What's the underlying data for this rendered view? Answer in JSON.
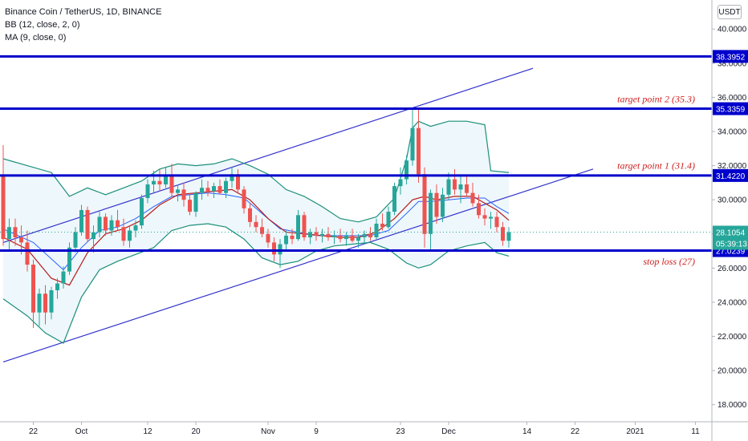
{
  "legend": {
    "symbol": "Binance Coin / TetherUS, 1D, BINANCE",
    "bb": "BB (12, close, 2, 0)",
    "ma": "MA (9, close, 0)"
  },
  "currency": "USDT",
  "colors": {
    "up": "#26a69a",
    "down": "#ef5350",
    "level": "#0000cc",
    "channel": "#3333cc",
    "bb": "#1b8f7a",
    "ma_red": "#b71c1c",
    "ma_blue": "#2962ff",
    "annotation": "#d02020"
  },
  "chart_data": {
    "type": "candlestick",
    "yaxis_ticks": [
      "18.0000",
      "20.0000",
      "22.0000",
      "24.0000",
      "26.0000",
      "28.0000",
      "30.0000",
      "32.0000",
      "34.0000",
      "36.0000",
      "38.0000",
      "40.0000"
    ],
    "ylim": [
      17,
      41.7
    ],
    "xaxis_ticks": [
      {
        "label": "22",
        "day": 5
      },
      {
        "label": "Oct",
        "day": 13
      },
      {
        "label": "12",
        "day": 24
      },
      {
        "label": "20",
        "day": 32
      },
      {
        "label": "Nov",
        "day": 44
      },
      {
        "label": "9",
        "day": 52
      },
      {
        "label": "23",
        "day": 66
      },
      {
        "label": "Dec",
        "day": 74
      },
      {
        "label": "14",
        "day": 87
      },
      {
        "label": "22",
        "day": 95
      },
      {
        "label": "2021",
        "day": 105
      },
      {
        "label": "11",
        "day": 115
      }
    ],
    "levels": [
      {
        "value": 38.3952,
        "label": "38.3952"
      },
      {
        "value": 35.3359,
        "label": "35.3359"
      },
      {
        "value": 31.422,
        "label": "31.4220"
      },
      {
        "value": 27.0239,
        "label": "27.0239"
      }
    ],
    "current_price": {
      "value": 28.1054,
      "label": "28.1054",
      "countdown": "05:39:13"
    },
    "annotations": [
      {
        "text": "target point 2 (35.3)",
        "value": 35.3
      },
      {
        "text": "target point 1 (31.4)",
        "value": 31.4
      },
      {
        "text": "stop loss (27)",
        "value": 27
      }
    ],
    "channel": {
      "upper": {
        "from": [
          0,
          27.5
        ],
        "to": [
          88,
          37.7
        ]
      },
      "lower": {
        "from": [
          0,
          20.5
        ],
        "to": [
          98,
          31.8
        ]
      }
    },
    "candles": [
      [
        0,
        31.4,
        33.2,
        27.3,
        27.7
      ],
      [
        1,
        27.7,
        28.9,
        27.1,
        28.4
      ],
      [
        2,
        28.4,
        28.9,
        27.3,
        27.8
      ],
      [
        3,
        27.8,
        28.5,
        26.8,
        27.5
      ],
      [
        4,
        27.5,
        28.2,
        25.8,
        26.2
      ],
      [
        5,
        26.2,
        26.5,
        22.5,
        23.4
      ],
      [
        6,
        23.4,
        24.8,
        22.6,
        24.5
      ],
      [
        7,
        24.5,
        25.0,
        22.7,
        23.4
      ],
      [
        8,
        23.4,
        24.9,
        23.0,
        24.7
      ],
      [
        9,
        24.7,
        25.4,
        24.2,
        25.1
      ],
      [
        10,
        25.1,
        26.1,
        24.8,
        25.8
      ],
      [
        11,
        25.8,
        27.5,
        25.6,
        27.2
      ],
      [
        12,
        27.2,
        28.4,
        26.9,
        28.1
      ],
      [
        13,
        28.1,
        29.7,
        27.9,
        29.4
      ],
      [
        14,
        29.4,
        29.6,
        27.5,
        27.7
      ],
      [
        15,
        27.7,
        28.5,
        26.9,
        28.1
      ],
      [
        16,
        28.1,
        29.3,
        27.8,
        29.0
      ],
      [
        17,
        29.0,
        29.2,
        27.9,
        28.2
      ],
      [
        18,
        28.2,
        29.1,
        27.9,
        28.8
      ],
      [
        19,
        28.8,
        29.4,
        28.2,
        28.4
      ],
      [
        20,
        28.4,
        28.9,
        27.3,
        27.6
      ],
      [
        21,
        27.6,
        28.5,
        27.2,
        28.2
      ],
      [
        22,
        28.2,
        28.8,
        27.8,
        28.5
      ],
      [
        23,
        28.5,
        30.3,
        28.3,
        30.1
      ],
      [
        24,
        30.1,
        31.2,
        29.8,
        30.9
      ],
      [
        25,
        30.9,
        31.7,
        30.4,
        31.1
      ],
      [
        26,
        31.1,
        31.8,
        30.5,
        30.9
      ],
      [
        27,
        30.9,
        31.9,
        30.7,
        31.4
      ],
      [
        28,
        31.4,
        32.1,
        30.2,
        30.4
      ],
      [
        29,
        30.4,
        30.9,
        29.9,
        30.6
      ],
      [
        30,
        30.6,
        31.0,
        29.6,
        30.0
      ],
      [
        31,
        30.0,
        30.4,
        29.1,
        29.3
      ],
      [
        32,
        29.3,
        30.5,
        29.0,
        30.4
      ],
      [
        33,
        30.4,
        31.2,
        30.0,
        30.7
      ],
      [
        34,
        30.7,
        31.1,
        30.2,
        30.5
      ],
      [
        35,
        30.5,
        31.0,
        30.1,
        30.8
      ],
      [
        36,
        30.8,
        31.2,
        30.3,
        30.4
      ],
      [
        37,
        30.4,
        31.3,
        30.1,
        31.1
      ],
      [
        38,
        31.1,
        31.9,
        30.7,
        31.5
      ],
      [
        39,
        31.5,
        31.8,
        30.4,
        30.6
      ],
      [
        40,
        30.6,
        30.8,
        29.2,
        29.5
      ],
      [
        41,
        29.5,
        29.8,
        28.4,
        28.7
      ],
      [
        42,
        28.7,
        29.1,
        28.1,
        28.4
      ],
      [
        43,
        28.4,
        28.9,
        27.8,
        28.0
      ],
      [
        44,
        28.0,
        28.3,
        27.2,
        27.5
      ],
      [
        45,
        27.5,
        27.8,
        26.4,
        26.8
      ],
      [
        46,
        26.8,
        27.7,
        26.0,
        27.4
      ],
      [
        47,
        27.4,
        28.2,
        27.0,
        27.9
      ],
      [
        48,
        27.9,
        28.3,
        27.4,
        27.7
      ],
      [
        49,
        27.7,
        29.4,
        27.6,
        29.1
      ],
      [
        50,
        29.1,
        29.3,
        27.6,
        27.8
      ],
      [
        51,
        27.8,
        28.3,
        27.4,
        28.1
      ],
      [
        52,
        28.1,
        28.4,
        27.6,
        27.9
      ],
      [
        53,
        27.9,
        28.3,
        27.5,
        28.0
      ],
      [
        54,
        28.0,
        28.4,
        27.6,
        27.8
      ],
      [
        55,
        27.8,
        28.2,
        27.4,
        27.9
      ],
      [
        56,
        27.9,
        28.3,
        27.5,
        27.7
      ],
      [
        57,
        27.7,
        28.1,
        27.3,
        27.9
      ],
      [
        58,
        27.9,
        28.3,
        27.5,
        27.6
      ],
      [
        59,
        27.6,
        28.0,
        27.2,
        27.8
      ],
      [
        60,
        27.8,
        28.2,
        27.4,
        28.0
      ],
      [
        61,
        28.0,
        28.4,
        27.6,
        27.8
      ],
      [
        62,
        27.8,
        28.9,
        27.7,
        28.6
      ],
      [
        63,
        28.6,
        29.2,
        28.2,
        28.4
      ],
      [
        64,
        28.4,
        29.6,
        28.3,
        29.3
      ],
      [
        65,
        29.3,
        31.0,
        29.1,
        30.8
      ],
      [
        66,
        30.8,
        31.9,
        30.3,
        31.2
      ],
      [
        67,
        31.2,
        32.6,
        30.9,
        32.3
      ],
      [
        68,
        32.3,
        35.3,
        32.0,
        34.2
      ],
      [
        69,
        34.2,
        35.4,
        31.0,
        31.5
      ],
      [
        70,
        31.5,
        31.9,
        27.2,
        28.0
      ],
      [
        71,
        28.0,
        30.6,
        27.1,
        30.4
      ],
      [
        72,
        30.4,
        30.9,
        28.6,
        29.0
      ],
      [
        73,
        29.0,
        30.7,
        28.7,
        30.3
      ],
      [
        74,
        30.3,
        31.6,
        30.0,
        31.2
      ],
      [
        75,
        31.2,
        31.8,
        30.3,
        30.6
      ],
      [
        76,
        30.6,
        31.4,
        29.8,
        30.9
      ],
      [
        77,
        30.9,
        31.5,
        30.2,
        30.4
      ],
      [
        78,
        30.4,
        31.0,
        29.6,
        29.8
      ],
      [
        79,
        29.8,
        30.3,
        28.9,
        29.1
      ],
      [
        80,
        29.1,
        29.5,
        28.5,
        28.9
      ],
      [
        81,
        28.9,
        29.3,
        28.3,
        29.0
      ],
      [
        82,
        29.0,
        29.3,
        28.1,
        28.4
      ],
      [
        83,
        28.4,
        28.7,
        27.3,
        27.6
      ],
      [
        84,
        27.6,
        28.4,
        27.2,
        28.1
      ]
    ],
    "bb_upper": [
      [
        0,
        32.4
      ],
      [
        4,
        32.0
      ],
      [
        8,
        31.6
      ],
      [
        11,
        30.2
      ],
      [
        14,
        30.7
      ],
      [
        17,
        30.3
      ],
      [
        20,
        30.7
      ],
      [
        23,
        31.1
      ],
      [
        26,
        31.8
      ],
      [
        29,
        32.1
      ],
      [
        32,
        32.0
      ],
      [
        35,
        32.1
      ],
      [
        38,
        32.4
      ],
      [
        41,
        32.0
      ],
      [
        44,
        31.5
      ],
      [
        47,
        30.6
      ],
      [
        50,
        30.2
      ],
      [
        53,
        29.6
      ],
      [
        56,
        28.9
      ],
      [
        59,
        28.7
      ],
      [
        62,
        29.0
      ],
      [
        65,
        30.1
      ],
      [
        67,
        32.4
      ],
      [
        68,
        34.2
      ],
      [
        69,
        34.6
      ],
      [
        71,
        34.3
      ],
      [
        74,
        34.6
      ],
      [
        77,
        34.6
      ],
      [
        80,
        34.4
      ],
      [
        81,
        31.7
      ],
      [
        84,
        31.6
      ]
    ],
    "bb_lower": [
      [
        0,
        24.2
      ],
      [
        4,
        23.2
      ],
      [
        7,
        22.2
      ],
      [
        10,
        21.6
      ],
      [
        13,
        24.3
      ],
      [
        16,
        25.9
      ],
      [
        19,
        26.4
      ],
      [
        22,
        26.8
      ],
      [
        25,
        27.2
      ],
      [
        28,
        28.2
      ],
      [
        31,
        28.5
      ],
      [
        34,
        28.6
      ],
      [
        37,
        28.4
      ],
      [
        40,
        27.7
      ],
      [
        43,
        26.6
      ],
      [
        46,
        26.2
      ],
      [
        49,
        26.4
      ],
      [
        52,
        27.0
      ],
      [
        55,
        27.3
      ],
      [
        58,
        27.4
      ],
      [
        61,
        27.5
      ],
      [
        64,
        27.1
      ],
      [
        67,
        26.3
      ],
      [
        69,
        26.0
      ],
      [
        71,
        26.2
      ],
      [
        74,
        27.0
      ],
      [
        77,
        27.3
      ],
      [
        80,
        27.5
      ],
      [
        82,
        26.9
      ],
      [
        84,
        26.7
      ]
    ],
    "bb_basis": [
      [
        0,
        28.3
      ],
      [
        5,
        27.5
      ],
      [
        10,
        25.9
      ],
      [
        13,
        27.2
      ],
      [
        16,
        28.2
      ],
      [
        19,
        28.4
      ],
      [
        22,
        28.9
      ],
      [
        25,
        29.6
      ],
      [
        28,
        30.2
      ],
      [
        31,
        30.3
      ],
      [
        34,
        30.4
      ],
      [
        37,
        30.3
      ],
      [
        40,
        30.1
      ],
      [
        43,
        29.2
      ],
      [
        46,
        28.3
      ],
      [
        49,
        28.1
      ],
      [
        52,
        27.9
      ],
      [
        55,
        27.9
      ],
      [
        58,
        27.9
      ],
      [
        61,
        27.9
      ],
      [
        64,
        28.2
      ],
      [
        67,
        29.2
      ],
      [
        69,
        29.9
      ],
      [
        71,
        29.9
      ],
      [
        74,
        30.0
      ],
      [
        77,
        30.1
      ],
      [
        80,
        30.1
      ],
      [
        82,
        29.6
      ],
      [
        84,
        29.2
      ]
    ],
    "ma": [
      [
        0,
        27.8
      ],
      [
        4,
        27.1
      ],
      [
        8,
        25.4
      ],
      [
        11,
        25.0
      ],
      [
        14,
        26.9
      ],
      [
        17,
        28.0
      ],
      [
        20,
        28.3
      ],
      [
        23,
        28.8
      ],
      [
        26,
        29.7
      ],
      [
        29,
        30.3
      ],
      [
        32,
        30.4
      ],
      [
        35,
        30.5
      ],
      [
        38,
        30.6
      ],
      [
        41,
        30.0
      ],
      [
        44,
        28.9
      ],
      [
        47,
        28.1
      ],
      [
        50,
        28.0
      ],
      [
        53,
        27.9
      ],
      [
        56,
        27.8
      ],
      [
        59,
        27.8
      ],
      [
        62,
        28.1
      ],
      [
        65,
        28.9
      ],
      [
        68,
        30.0
      ],
      [
        70,
        30.2
      ],
      [
        72,
        30.0
      ],
      [
        75,
        30.2
      ],
      [
        78,
        30.2
      ],
      [
        80,
        29.8
      ],
      [
        82,
        29.4
      ],
      [
        84,
        28.8
      ]
    ]
  }
}
